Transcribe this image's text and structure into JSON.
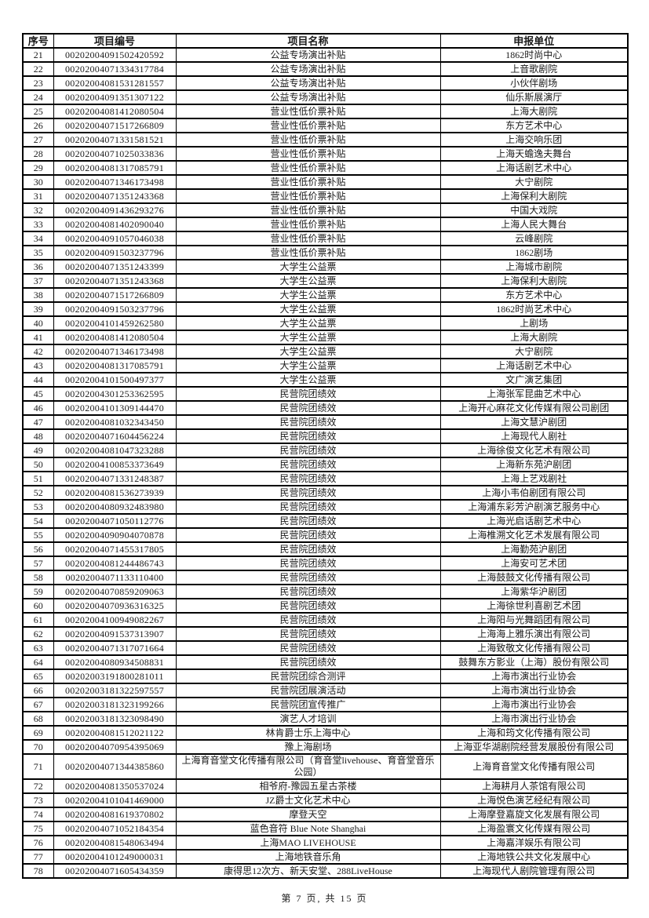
{
  "page": {
    "footer": "第 7 页, 共 15 页"
  },
  "table": {
    "columns": [
      "序号",
      "项目编号",
      "项目名称",
      "申报单位"
    ],
    "rows": [
      [
        "21",
        "00202004091502420592",
        "公益专场演出补贴",
        "1862时尚中心"
      ],
      [
        "22",
        "00202004071334317784",
        "公益专场演出补贴",
        "上音歌剧院"
      ],
      [
        "23",
        "00202004081531281557",
        "公益专场演出补贴",
        "小伙伴剧场"
      ],
      [
        "24",
        "00202004091351307122",
        "公益专场演出补贴",
        "仙乐斯展演厅"
      ],
      [
        "25",
        "00202004081412080504",
        "营业性低价票补贴",
        "上海大剧院"
      ],
      [
        "26",
        "00202004071517266809",
        "营业性低价票补贴",
        "东方艺术中心"
      ],
      [
        "27",
        "00202004071331581521",
        "营业性低价票补贴",
        "上海交响乐团"
      ],
      [
        "28",
        "00202004071025033836",
        "营业性低价票补贴",
        "上海天蟾逸夫舞台"
      ],
      [
        "29",
        "00202004081317085791",
        "营业性低价票补贴",
        "上海话剧艺术中心"
      ],
      [
        "30",
        "00202004071346173498",
        "营业性低价票补贴",
        "大宁剧院"
      ],
      [
        "31",
        "00202004071351243368",
        "营业性低价票补贴",
        "上海保利大剧院"
      ],
      [
        "32",
        "00202004091436293276",
        "营业性低价票补贴",
        "中国大戏院"
      ],
      [
        "33",
        "00202004081402090040",
        "营业性低价票补贴",
        "上海人民大舞台"
      ],
      [
        "34",
        "00202004091057046038",
        "营业性低价票补贴",
        "云峰剧院"
      ],
      [
        "35",
        "00202004091503237796",
        "营业性低价票补贴",
        "1862剧场"
      ],
      [
        "36",
        "00202004071351243399",
        "大学生公益票",
        "上海城市剧院"
      ],
      [
        "37",
        "00202004071351243368",
        "大学生公益票",
        "上海保利大剧院"
      ],
      [
        "38",
        "00202004071517266809",
        "大学生公益票",
        "东方艺术中心"
      ],
      [
        "39",
        "00202004091503237796",
        "大学生公益票",
        "1862时尚艺术中心"
      ],
      [
        "40",
        "00202004101459262580",
        "大学生公益票",
        "上剧场"
      ],
      [
        "41",
        "00202004081412080504",
        "大学生公益票",
        "上海大剧院"
      ],
      [
        "42",
        "00202004071346173498",
        "大学生公益票",
        "大宁剧院"
      ],
      [
        "43",
        "00202004081317085791",
        "大学生公益票",
        "上海话剧艺术中心"
      ],
      [
        "44",
        "00202004101500497377",
        "大学生公益票",
        "文广演艺集团"
      ],
      [
        "45",
        "00202004301253362595",
        "民营院团绩效",
        "上海张军昆曲艺术中心"
      ],
      [
        "46",
        "00202004101309144470",
        "民营院团绩效",
        "上海开心麻花文化传媒有限公司剧团"
      ],
      [
        "47",
        "00202004081032343450",
        "民营院团绩效",
        "上海文慧沪剧团"
      ],
      [
        "48",
        "00202004071604456224",
        "民营院团绩效",
        "上海现代人剧社"
      ],
      [
        "49",
        "00202004081047323288",
        "民营院团绩效",
        "上海徐俊文化艺术有限公司"
      ],
      [
        "50",
        "00202004100853373649",
        "民营院团绩效",
        "上海新东苑沪剧团"
      ],
      [
        "51",
        "00202004071331248387",
        "民营院团绩效",
        "上海上艺戏剧社"
      ],
      [
        "52",
        "00202004081536273939",
        "民营院团绩效",
        "上海小韦伯剧团有限公司"
      ],
      [
        "53",
        "00202004080932483980",
        "民营院团绩效",
        "上海浦东彩芳沪剧演艺服务中心"
      ],
      [
        "54",
        "00202004071050112776",
        "民营院团绩效",
        "上海光启话剧艺术中心"
      ],
      [
        "55",
        "00202004090904070878",
        "民营院团绩效",
        "上海椎溯文化艺术发展有限公司"
      ],
      [
        "56",
        "00202004071455317805",
        "民营院团绩效",
        "上海勤苑沪剧团"
      ],
      [
        "57",
        "00202004081244486743",
        "民营院团绩效",
        "上海安可艺术团"
      ],
      [
        "58",
        "00202004071133110400",
        "民营院团绩效",
        "上海鼓鼓文化传播有限公司"
      ],
      [
        "59",
        "00202004070859209063",
        "民营院团绩效",
        "上海紫华沪剧团"
      ],
      [
        "60",
        "00202004070936316325",
        "民营院团绩效",
        "上海徐世利喜剧艺术团"
      ],
      [
        "61",
        "00202004100949082267",
        "民营院团绩效",
        "上海阳与光舞蹈团有限公司"
      ],
      [
        "62",
        "00202004091537313907",
        "民营院团绩效",
        "上海海上雅乐演出有限公司"
      ],
      [
        "63",
        "00202004071317071664",
        "民营院团绩效",
        "上海致敬文化传播有限公司"
      ],
      [
        "64",
        "00202004080934508831",
        "民营院团绩效",
        "鼓舞东方影业（上海）股份有限公司"
      ],
      [
        "65",
        "00202003191800281011",
        "民营院团综合测评",
        "上海市演出行业协会"
      ],
      [
        "66",
        "00202003181322597557",
        "民营院团展演活动",
        "上海市演出行业协会"
      ],
      [
        "67",
        "00202003181323199266",
        "民营院团宣传推广",
        "上海市演出行业协会"
      ],
      [
        "68",
        "00202003181323098490",
        "演艺人才培训",
        "上海市演出行业协会"
      ],
      [
        "69",
        "00202004081512021122",
        "林肯爵士乐上海中心",
        "上海和筠文化传播有限公司"
      ],
      [
        "70",
        "00202004070954395069",
        "豫上海剧场",
        "上海亚华湖剧院经营发展股份有限公司"
      ],
      [
        "71",
        "00202004071344385860",
        "上海育音堂文化传播有限公司（育音堂livehouse、育音堂音乐公园）",
        "上海育音堂文化传播有限公司"
      ],
      [
        "72",
        "00202004081350537024",
        "相爷府-豫园五星古茶楼",
        "上海耕月人茶馆有限公司"
      ],
      [
        "73",
        "00202004101041469000",
        "JZ爵士文化艺术中心",
        "上海悦色演艺经纪有限公司"
      ],
      [
        "74",
        "00202004081619370802",
        "摩登天空",
        "上海摩登嘉旋文化发展有限公司"
      ],
      [
        "75",
        "00202004071052184354",
        "蓝色音符 Blue Note Shanghai",
        "上海盈寰文化传媒有限公司"
      ],
      [
        "76",
        "00202004081548063494",
        "上海MAO LIVEHOUSE",
        "上海嘉洋娱乐有限公司"
      ],
      [
        "77",
        "00202004101249000031",
        "上海地铁音乐角",
        "上海地铁公共文化发展中心"
      ],
      [
        "78",
        "00202004071605434359",
        "康得思12次方、新天安堂、288LiveHouse",
        "上海现代人剧院管理有限公司"
      ]
    ]
  }
}
